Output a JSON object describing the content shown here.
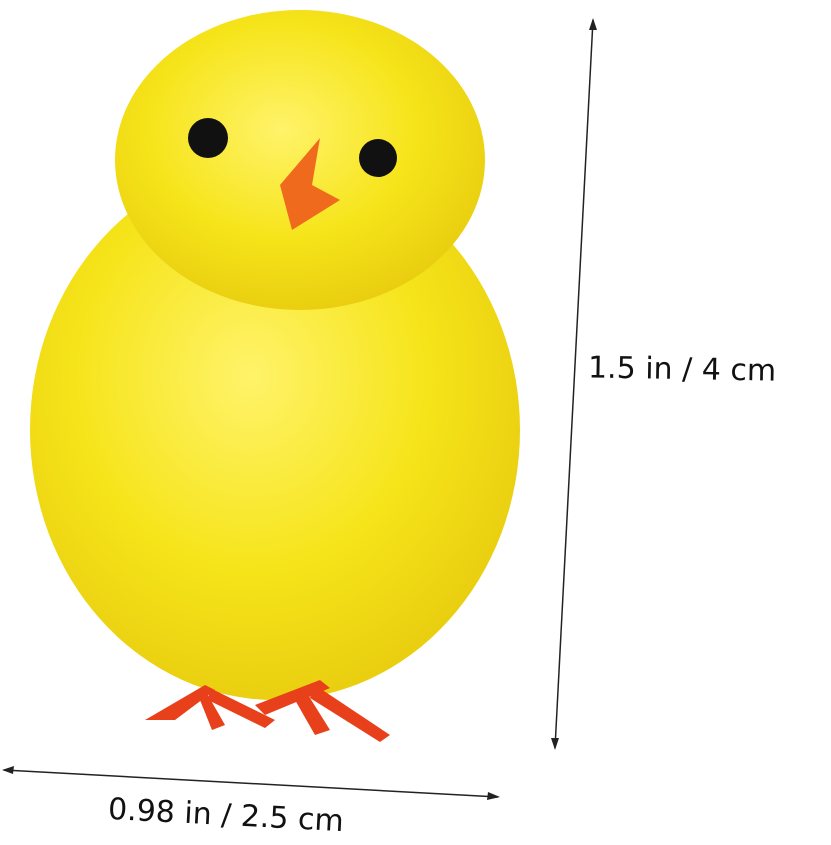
{
  "product": {
    "subject": "chick-toy",
    "body_color": "#f7e81a",
    "beak_color": "#f06a1e",
    "feet_color": "#e8401a"
  },
  "dimensions": {
    "height_label": "1.5 in / 4 cm",
    "width_label": "0.98 in / 2.5 cm"
  }
}
